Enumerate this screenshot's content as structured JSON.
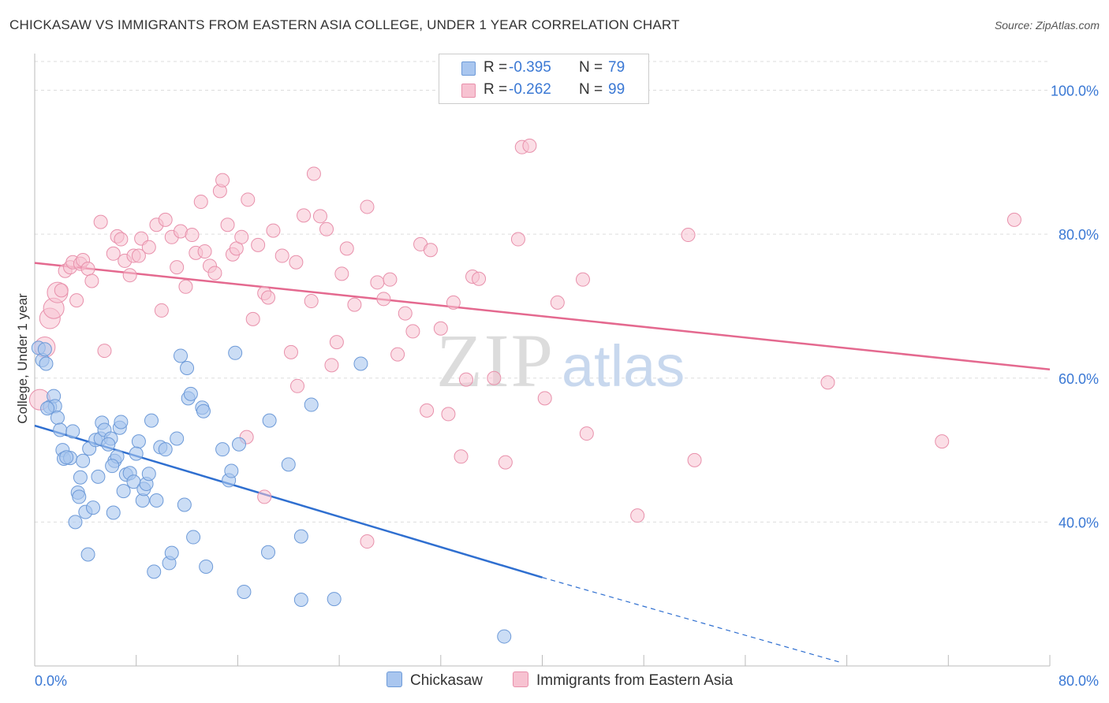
{
  "title": "CHICKASAW VS IMMIGRANTS FROM EASTERN ASIA COLLEGE, UNDER 1 YEAR CORRELATION CHART",
  "source": "Source: ZipAtlas.com",
  "watermark": {
    "zip": "ZIP",
    "atlas": "atlas"
  },
  "legend": {
    "rows": [
      {
        "r_label": "R =",
        "r_value": "-0.395",
        "n_label": "N =",
        "n_value": "79"
      },
      {
        "r_label": "R =",
        "r_value": "-0.262",
        "n_label": "N =",
        "n_value": "99"
      }
    ]
  },
  "bottom_legend": [
    "Chickasaw",
    "Immigrants from Eastern Asia"
  ],
  "colors": {
    "blue_fill": "#a9c6ef",
    "blue_stroke": "#6d9ad8",
    "blue_line": "#2f6fd0",
    "pink_fill": "#f7c2d1",
    "pink_stroke": "#e890ab",
    "pink_line": "#e4698f",
    "tick_label": "#3a78d4",
    "grid": "#dddddd"
  },
  "chart_data": {
    "type": "scatter",
    "title": "CHICKASAW VS IMMIGRANTS FROM EASTERN ASIA COLLEGE, UNDER 1 YEAR CORRELATION CHART",
    "xlabel": "",
    "ylabel": "College, Under 1 year",
    "xlim": [
      0,
      80
    ],
    "ylim": [
      20,
      104
    ],
    "x_tick_labels": [
      "0.0%",
      "80.0%"
    ],
    "y_ticks": [
      40,
      60,
      80,
      100
    ],
    "y_tick_labels": [
      "40.0%",
      "60.0%",
      "80.0%",
      "100.0%"
    ],
    "grid": true,
    "series": [
      {
        "name": "Chickasaw",
        "color": "#a9c6ef",
        "r": -0.395,
        "n": 79,
        "trend": {
          "x0": 0,
          "y0": 53.4,
          "x1": 40,
          "y1": 32.3,
          "dash_to_x": 63.5,
          "dash_to_y": 20.5
        },
        "points": [
          [
            0.3,
            64.2
          ],
          [
            0.6,
            62.5
          ],
          [
            0.8,
            64.0
          ],
          [
            1.2,
            56.0
          ],
          [
            1.5,
            57.5
          ],
          [
            1.6,
            56.1
          ],
          [
            1.8,
            54.5
          ],
          [
            2.0,
            52.8
          ],
          [
            2.2,
            50.0
          ],
          [
            2.3,
            48.8
          ],
          [
            2.8,
            48.9
          ],
          [
            3.0,
            52.6
          ],
          [
            3.2,
            40.0
          ],
          [
            3.4,
            44.1
          ],
          [
            3.6,
            46.2
          ],
          [
            3.8,
            48.5
          ],
          [
            4.0,
            41.4
          ],
          [
            4.2,
            35.5
          ],
          [
            4.3,
            50.2
          ],
          [
            4.6,
            42.0
          ],
          [
            4.8,
            51.4
          ],
          [
            5.0,
            46.3
          ],
          [
            5.2,
            51.6
          ],
          [
            5.3,
            53.8
          ],
          [
            5.5,
            52.8
          ],
          [
            6.0,
            51.6
          ],
          [
            6.2,
            41.3
          ],
          [
            6.3,
            48.5
          ],
          [
            6.5,
            49.1
          ],
          [
            6.7,
            53.1
          ],
          [
            6.8,
            53.9
          ],
          [
            7.0,
            44.3
          ],
          [
            7.2,
            46.6
          ],
          [
            7.5,
            46.8
          ],
          [
            7.8,
            45.6
          ],
          [
            8.2,
            51.2
          ],
          [
            8.5,
            43.0
          ],
          [
            8.6,
            44.6
          ],
          [
            8.8,
            45.3
          ],
          [
            9.0,
            46.7
          ],
          [
            9.2,
            54.1
          ],
          [
            9.4,
            33.1
          ],
          [
            9.6,
            43.0
          ],
          [
            9.9,
            50.4
          ],
          [
            10.3,
            50.1
          ],
          [
            10.6,
            34.3
          ],
          [
            10.8,
            35.7
          ],
          [
            11.2,
            51.6
          ],
          [
            11.5,
            63.1
          ],
          [
            11.8,
            42.4
          ],
          [
            12.0,
            61.4
          ],
          [
            12.1,
            57.2
          ],
          [
            12.3,
            57.8
          ],
          [
            12.5,
            37.9
          ],
          [
            13.2,
            55.9
          ],
          [
            13.3,
            55.4
          ],
          [
            13.5,
            33.8
          ],
          [
            14.8,
            50.1
          ],
          [
            15.3,
            45.8
          ],
          [
            15.5,
            47.1
          ],
          [
            15.8,
            63.5
          ],
          [
            16.1,
            50.8
          ],
          [
            16.5,
            30.3
          ],
          [
            18.4,
            35.8
          ],
          [
            18.5,
            54.1
          ],
          [
            20.0,
            48.0
          ],
          [
            21.0,
            29.2
          ],
          [
            21.0,
            38.0
          ],
          [
            21.8,
            56.3
          ],
          [
            23.6,
            29.3
          ],
          [
            25.7,
            62.0
          ],
          [
            37.0,
            24.1
          ],
          [
            1.0,
            55.8
          ],
          [
            2.5,
            49.0
          ],
          [
            3.5,
            43.5
          ],
          [
            6.1,
            47.8
          ],
          [
            8.0,
            49.5
          ],
          [
            0.9,
            62.0
          ],
          [
            5.8,
            50.8
          ]
        ]
      },
      {
        "name": "Immigrants from Eastern Asia",
        "color": "#f7c2d1",
        "r": -0.262,
        "n": 99,
        "trend": {
          "x0": 0,
          "y0": 76.0,
          "x1": 80,
          "y1": 61.2
        },
        "points": [
          [
            0.4,
            57.0
          ],
          [
            0.8,
            64.3
          ],
          [
            1.2,
            68.3
          ],
          [
            1.5,
            69.7
          ],
          [
            1.8,
            71.9
          ],
          [
            2.1,
            72.2
          ],
          [
            2.4,
            74.9
          ],
          [
            2.8,
            75.4
          ],
          [
            3.0,
            76.1
          ],
          [
            3.3,
            70.8
          ],
          [
            3.6,
            75.9
          ],
          [
            3.8,
            76.4
          ],
          [
            4.2,
            75.2
          ],
          [
            4.5,
            73.5
          ],
          [
            5.2,
            81.7
          ],
          [
            5.5,
            63.8
          ],
          [
            6.2,
            77.3
          ],
          [
            6.5,
            79.7
          ],
          [
            6.8,
            79.3
          ],
          [
            7.1,
            76.3
          ],
          [
            7.5,
            74.3
          ],
          [
            7.8,
            77.0
          ],
          [
            8.2,
            77.0
          ],
          [
            8.4,
            79.4
          ],
          [
            9.0,
            78.2
          ],
          [
            9.6,
            81.3
          ],
          [
            10.0,
            69.4
          ],
          [
            10.3,
            82.0
          ],
          [
            10.8,
            79.6
          ],
          [
            11.2,
            75.4
          ],
          [
            11.5,
            80.4
          ],
          [
            11.9,
            72.7
          ],
          [
            12.4,
            79.9
          ],
          [
            12.7,
            77.4
          ],
          [
            13.1,
            84.5
          ],
          [
            13.4,
            77.6
          ],
          [
            13.8,
            75.6
          ],
          [
            14.2,
            74.6
          ],
          [
            14.6,
            86.0
          ],
          [
            14.8,
            87.5
          ],
          [
            15.2,
            81.3
          ],
          [
            15.6,
            77.2
          ],
          [
            15.9,
            78.0
          ],
          [
            16.3,
            79.6
          ],
          [
            16.8,
            84.8
          ],
          [
            17.2,
            68.2
          ],
          [
            17.6,
            78.5
          ],
          [
            18.1,
            71.8
          ],
          [
            18.4,
            71.2
          ],
          [
            18.8,
            80.5
          ],
          [
            19.5,
            77.0
          ],
          [
            20.2,
            63.6
          ],
          [
            20.6,
            76.1
          ],
          [
            21.2,
            82.6
          ],
          [
            21.8,
            70.7
          ],
          [
            22.0,
            88.4
          ],
          [
            22.5,
            82.5
          ],
          [
            23.0,
            80.7
          ],
          [
            23.4,
            61.8
          ],
          [
            23.8,
            65.0
          ],
          [
            24.2,
            74.5
          ],
          [
            24.6,
            78.0
          ],
          [
            25.2,
            70.2
          ],
          [
            26.2,
            83.8
          ],
          [
            27.0,
            73.3
          ],
          [
            27.5,
            71.0
          ],
          [
            28.0,
            73.7
          ],
          [
            28.6,
            63.3
          ],
          [
            29.2,
            69.0
          ],
          [
            29.8,
            66.5
          ],
          [
            30.4,
            78.6
          ],
          [
            30.9,
            55.5
          ],
          [
            31.2,
            77.8
          ],
          [
            32.0,
            66.9
          ],
          [
            32.6,
            55.0
          ],
          [
            33.0,
            70.5
          ],
          [
            33.6,
            49.1
          ],
          [
            34.0,
            59.8
          ],
          [
            34.5,
            74.1
          ],
          [
            35.0,
            73.8
          ],
          [
            36.2,
            60.0
          ],
          [
            37.1,
            48.3
          ],
          [
            38.1,
            79.3
          ],
          [
            38.4,
            92.1
          ],
          [
            39.0,
            92.3
          ],
          [
            40.2,
            57.2
          ],
          [
            41.2,
            70.5
          ],
          [
            43.2,
            73.7
          ],
          [
            43.5,
            52.3
          ],
          [
            47.5,
            40.9
          ],
          [
            51.5,
            79.9
          ],
          [
            52.0,
            48.6
          ],
          [
            62.5,
            59.4
          ],
          [
            71.5,
            51.2
          ],
          [
            77.2,
            82.0
          ],
          [
            16.7,
            51.8
          ],
          [
            18.1,
            43.5
          ],
          [
            20.7,
            58.9
          ],
          [
            26.2,
            37.3
          ]
        ]
      }
    ]
  }
}
